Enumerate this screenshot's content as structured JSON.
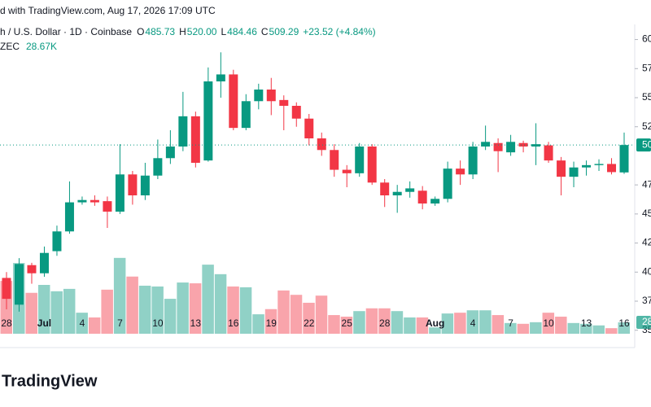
{
  "chart_data": {
    "type": "candlestick",
    "title": "d with TradingView.com, Aug 17, 2026 17:09 UTC",
    "subtitle": "h / U.S. Dollar · 1D · Coinbase",
    "ohlc": [
      {
        "key": "O",
        "text": "485.73"
      },
      {
        "key": "H",
        "text": "520.00"
      },
      {
        "key": "L",
        "text": "484.46"
      },
      {
        "key": "C",
        "text": "509.29"
      }
    ],
    "change": "+23.52 (+4.84%)",
    "volume_title": "ZEC",
    "volume_text": "28.67K",
    "last_price_label": "50",
    "last_volume_label": "28",
    "brand": "TradingView",
    "categories": [
      "28",
      null,
      null,
      "Jul",
      null,
      null,
      "4",
      null,
      null,
      "7",
      null,
      null,
      "10",
      null,
      null,
      "13",
      null,
      null,
      "16",
      null,
      null,
      "19",
      null,
      null,
      "22",
      null,
      null,
      "25",
      null,
      null,
      "28",
      null,
      null,
      null,
      "Aug",
      null,
      null,
      "4",
      null,
      null,
      "7",
      null,
      null,
      "10",
      null,
      null,
      "13",
      null,
      null,
      "16"
    ],
    "open": [
      395,
      372,
      406,
      399,
      418,
      435,
      460,
      462,
      461,
      452,
      484,
      466,
      483,
      498,
      508,
      534,
      496,
      564,
      570,
      524,
      547,
      557,
      548,
      543,
      532,
      515,
      505,
      488,
      485,
      508,
      477,
      466,
      469,
      470,
      459,
      463,
      489,
      484,
      508,
      511,
      503,
      511,
      508,
      509,
      496,
      482,
      490,
      492,
      493,
      485.73
    ],
    "high": [
      400,
      412,
      408,
      422,
      440,
      478,
      465,
      466,
      465,
      510,
      487,
      494,
      514,
      522,
      555,
      538,
      576,
      589,
      574,
      553,
      562,
      567,
      552,
      546,
      536,
      520,
      510,
      492,
      511,
      510,
      480,
      475,
      478,
      474,
      465,
      495,
      496,
      512,
      526,
      515,
      518,
      513,
      528,
      512,
      499,
      495,
      496,
      497,
      498,
      520
    ],
    "low": [
      368,
      366,
      390,
      396,
      414,
      433,
      458,
      457,
      438,
      450,
      458,
      462,
      480,
      493,
      504,
      490,
      495,
      550,
      522,
      522,
      540,
      535,
      522,
      525,
      509,
      500,
      482,
      473,
      482,
      475,
      456,
      451,
      464,
      454,
      457,
      460,
      475,
      480,
      505,
      486,
      500,
      503,
      492,
      494,
      466,
      473,
      483,
      487,
      484,
      484.46
    ],
    "close": [
      377,
      407,
      399,
      416.5,
      435,
      460,
      462,
      460,
      452,
      484,
      466,
      483,
      498,
      508,
      534,
      494,
      564,
      570,
      524,
      547,
      557,
      547,
      543,
      532,
      515,
      505,
      488,
      485,
      508,
      477,
      466,
      469,
      472,
      459,
      463,
      489,
      484,
      508,
      512,
      504,
      512,
      508,
      510,
      496,
      482,
      490,
      492,
      493,
      486,
      509.29
    ],
    "volume": [
      133,
      178,
      103,
      123,
      107,
      113,
      53,
      41,
      111,
      191,
      144,
      121,
      119,
      88,
      129,
      127,
      174,
      150,
      119,
      117,
      49,
      62,
      109,
      98,
      78,
      96,
      47,
      43,
      57,
      64,
      64,
      57,
      41,
      41,
      16,
      51,
      53,
      59,
      59,
      47,
      27,
      25,
      29,
      53,
      43,
      27,
      25,
      21,
      14,
      28.67
    ],
    "up_color": "#089981",
    "down_color": "#f23645",
    "ylim": [
      347,
      613
    ],
    "yticks": [
      {
        "value": 600,
        "label": "60"
      },
      {
        "value": 575,
        "label": "57"
      },
      {
        "value": 550,
        "label": "55"
      },
      {
        "value": 525,
        "label": "52"
      },
      {
        "value": 475,
        "label": "47"
      },
      {
        "value": 450,
        "label": "45"
      },
      {
        "value": 425,
        "label": "42"
      },
      {
        "value": 400,
        "label": "40"
      },
      {
        "value": 375,
        "label": "37"
      },
      {
        "value": 350,
        "label": "35"
      }
    ],
    "y2lim": [
      0,
      779
    ]
  }
}
